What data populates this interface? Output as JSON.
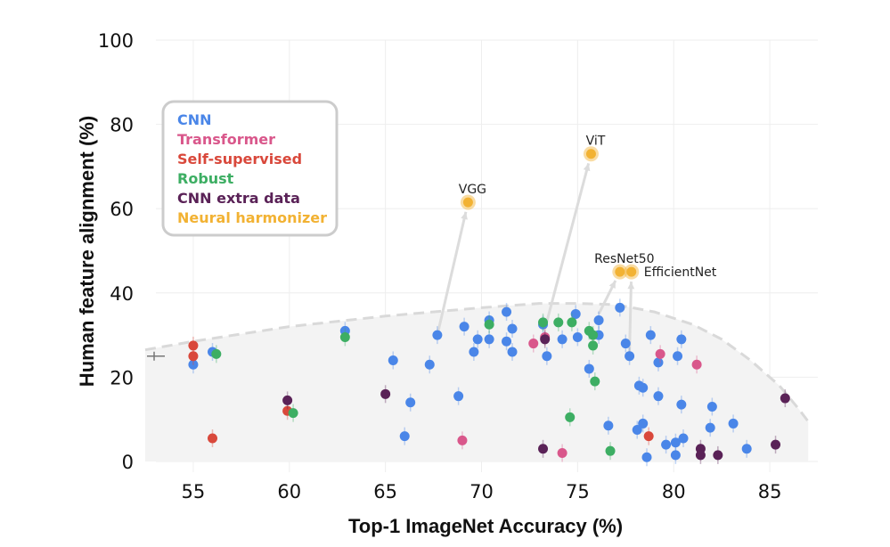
{
  "chart_data": {
    "type": "scatter",
    "xlabel": "Top-1 ImageNet Accuracy (%)",
    "ylabel": "Human feature alignment (%)",
    "xlim": [
      52.5,
      87.5
    ],
    "ylim": [
      0,
      100
    ],
    "xticks": [
      55,
      60,
      65,
      70,
      75,
      80,
      85
    ],
    "yticks": [
      0,
      20,
      40,
      60,
      80,
      100
    ],
    "legend_position": "upper-left",
    "colors": {
      "cnn": "#4a86e8",
      "transformer": "#d9578b",
      "self_supervised": "#d9483b",
      "robust": "#3dae63",
      "cnn_extra": "#5a2257",
      "harmonizer": "#f2b233"
    },
    "series": [
      {
        "key": "cnn",
        "name": "CNN",
        "points": [
          [
            55,
            23
          ],
          [
            56,
            26
          ],
          [
            62.9,
            31
          ],
          [
            65.4,
            24
          ],
          [
            66,
            6
          ],
          [
            66.3,
            14
          ],
          [
            67.3,
            23
          ],
          [
            67.7,
            30
          ],
          [
            68.8,
            15.5
          ],
          [
            69.1,
            32
          ],
          [
            69.6,
            26
          ],
          [
            69.8,
            29
          ],
          [
            70.4,
            33.5
          ],
          [
            70.4,
            29
          ],
          [
            71.3,
            35.5
          ],
          [
            71.3,
            28.5
          ],
          [
            71.6,
            31.5
          ],
          [
            71.6,
            26
          ],
          [
            73.2,
            32.5
          ],
          [
            73.4,
            25
          ],
          [
            74.2,
            29
          ],
          [
            74.9,
            35
          ],
          [
            75,
            29.5
          ],
          [
            75.6,
            22
          ],
          [
            76.1,
            33.5
          ],
          [
            76.1,
            30
          ],
          [
            76.6,
            8.5
          ],
          [
            77.2,
            36.5
          ],
          [
            77.5,
            28
          ],
          [
            77.7,
            25
          ],
          [
            78.1,
            7.5
          ],
          [
            78.2,
            18
          ],
          [
            78.4,
            17.5
          ],
          [
            78.4,
            9
          ],
          [
            78.6,
            1
          ],
          [
            78.8,
            30
          ],
          [
            79.2,
            23.5
          ],
          [
            79.2,
            15.5
          ],
          [
            79.6,
            4
          ],
          [
            80.1,
            4.5
          ],
          [
            80.1,
            1.5
          ],
          [
            80.2,
            25
          ],
          [
            80.4,
            13.5
          ],
          [
            80.4,
            29
          ],
          [
            80.5,
            5.5
          ],
          [
            81.9,
            8
          ],
          [
            82,
            13
          ],
          [
            83.1,
            9
          ],
          [
            83.8,
            3
          ]
        ]
      },
      {
        "key": "transformer",
        "name": "Transformer",
        "points": [
          [
            69,
            5
          ],
          [
            72.7,
            28
          ],
          [
            73.3,
            29.5
          ],
          [
            74.2,
            2
          ],
          [
            79.3,
            25.5
          ],
          [
            81.2,
            23
          ]
        ]
      },
      {
        "key": "self_supervised",
        "name": "Self-supervised",
        "points": [
          [
            55,
            27.5
          ],
          [
            55,
            25
          ],
          [
            56,
            5.5
          ],
          [
            59.9,
            12
          ],
          [
            78.7,
            6
          ]
        ]
      },
      {
        "key": "robust",
        "name": "Robust",
        "points": [
          [
            56.2,
            25.5
          ],
          [
            60.2,
            11.5
          ],
          [
            62.9,
            29.5
          ],
          [
            70.4,
            32.5
          ],
          [
            73.2,
            33
          ],
          [
            74,
            33
          ],
          [
            74.6,
            10.5
          ],
          [
            74.7,
            33
          ],
          [
            75.6,
            31
          ],
          [
            75.8,
            30
          ],
          [
            75.8,
            27.5
          ],
          [
            75.9,
            19
          ],
          [
            76.7,
            2.5
          ]
        ]
      },
      {
        "key": "cnn_extra",
        "name": "CNN extra data",
        "points": [
          [
            59.9,
            14.5
          ],
          [
            65,
            16
          ],
          [
            73.2,
            3
          ],
          [
            73.3,
            29
          ],
          [
            81.4,
            3
          ],
          [
            81.4,
            1.5
          ],
          [
            82.3,
            1.5
          ],
          [
            85.3,
            4
          ],
          [
            85.8,
            15
          ]
        ]
      },
      {
        "key": "harmonizer",
        "name": "Neural harmonizer",
        "points": [
          [
            69.3,
            61.5
          ],
          [
            75.7,
            73
          ],
          [
            77.2,
            45
          ],
          [
            77.8,
            45
          ]
        ]
      }
    ],
    "annotations": [
      {
        "label": "VGG",
        "at": [
          69.3,
          61.5
        ],
        "from": [
          67.7,
          30
        ]
      },
      {
        "label": "ViT",
        "at": [
          75.7,
          73
        ],
        "from": [
          73.3,
          31.5
        ]
      },
      {
        "label": "ResNet50",
        "at": [
          77.2,
          45
        ],
        "from": [
          76.1,
          35
        ]
      },
      {
        "label": "EfficientNet",
        "at": [
          77.8,
          45
        ],
        "from": [
          77.7,
          26
        ]
      }
    ],
    "pareto_frontier": [
      [
        52.5,
        26.5
      ],
      [
        55,
        28.5
      ],
      [
        60,
        32
      ],
      [
        65,
        34.5
      ],
      [
        70,
        36.5
      ],
      [
        73,
        37.5
      ],
      [
        75,
        37.5
      ],
      [
        77,
        37.2
      ],
      [
        79,
        35.5
      ],
      [
        81,
        32.5
      ],
      [
        82.5,
        29
      ],
      [
        84,
        24
      ],
      [
        85.5,
        18
      ],
      [
        86.5,
        12.5
      ],
      [
        87,
        9.5
      ]
    ],
    "left_marker": [
      52.5,
      25
    ],
    "legend": [
      "CNN",
      "Transformer",
      "Self-supervised",
      "Robust",
      "CNN extra data",
      "Neural harmonizer"
    ]
  }
}
